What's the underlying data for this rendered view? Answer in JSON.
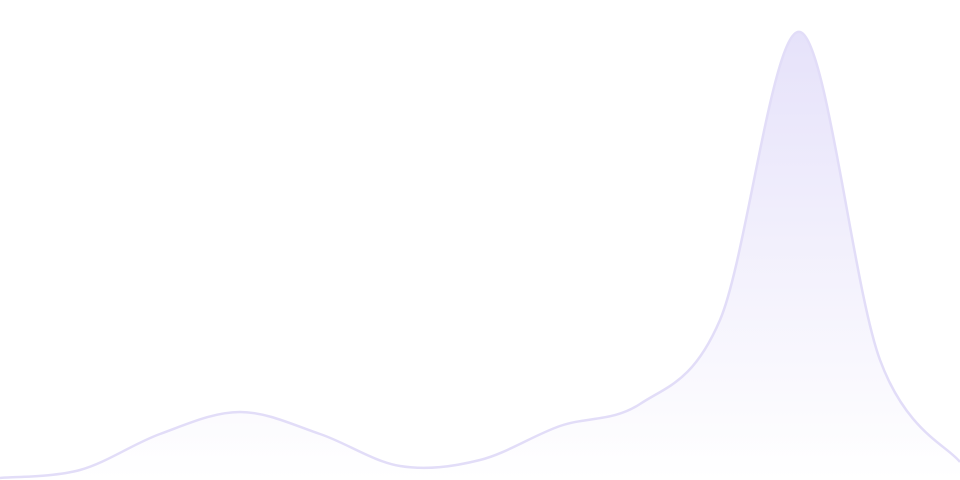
{
  "chart_data": {
    "type": "area",
    "title": "",
    "xlabel": "",
    "ylabel": "",
    "x": [
      0,
      1,
      2,
      3,
      4,
      5,
      6,
      7,
      8,
      9,
      10,
      11,
      12
    ],
    "values": [
      2,
      10,
      46,
      68,
      46,
      14,
      20,
      54,
      76,
      160,
      448,
      120,
      18
    ],
    "xlim": [
      0,
      12
    ],
    "ylim": [
      0,
      480
    ],
    "grid": false,
    "axes_visible": false,
    "smooth": true,
    "colors": {
      "line": "#e2ddf8",
      "fill_top": "#e6e2fa",
      "fill_bottom": "#ffffff"
    }
  }
}
